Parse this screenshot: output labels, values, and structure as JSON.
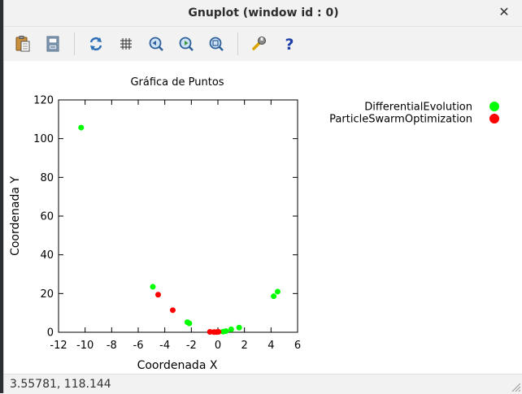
{
  "window": {
    "title": "Gnuplot (window id : 0)",
    "close_glyph": "✕"
  },
  "toolbar": {
    "items": [
      {
        "name": "copy-clipboard-icon"
      },
      {
        "name": "print-icon"
      },
      {
        "name": "replot-icon"
      },
      {
        "name": "grid-icon"
      },
      {
        "name": "zoom-previous-icon"
      },
      {
        "name": "zoom-next-icon"
      },
      {
        "name": "autoscale-icon"
      },
      {
        "name": "config-wrench-icon"
      },
      {
        "name": "help-icon"
      }
    ]
  },
  "status": {
    "coords": "3.55781,  118.144"
  },
  "chart_data": {
    "type": "scatter",
    "title": "Gráfica de Puntos",
    "xlabel": "Coordenada X",
    "ylabel": "Coordenada Y",
    "xlim": [
      -12,
      6
    ],
    "ylim": [
      0,
      120
    ],
    "xticks": [
      -12,
      -10,
      -8,
      -6,
      -4,
      -2,
      0,
      2,
      4,
      6
    ],
    "yticks": [
      0,
      20,
      40,
      60,
      80,
      100,
      120
    ],
    "grid": false,
    "legend": "top-right, outside plot",
    "series": [
      {
        "name": "DifferentialEvolution",
        "color": "#00ff00",
        "points": [
          {
            "x": -10.3,
            "y": 105.7
          },
          {
            "x": -4.9,
            "y": 23.5
          },
          {
            "x": -2.3,
            "y": 5.2
          },
          {
            "x": -2.15,
            "y": 4.6
          },
          {
            "x": 0.4,
            "y": 0.3
          },
          {
            "x": 0.6,
            "y": 0.6
          },
          {
            "x": 1.0,
            "y": 1.5
          },
          {
            "x": 1.6,
            "y": 2.4
          },
          {
            "x": 4.2,
            "y": 18.6
          },
          {
            "x": 4.5,
            "y": 21.0
          }
        ]
      },
      {
        "name": "ParticleSwarmOptimization",
        "color": "#ff0000",
        "points": [
          {
            "x": -4.5,
            "y": 19.4
          },
          {
            "x": -3.4,
            "y": 11.4
          },
          {
            "x": -0.6,
            "y": 0.2
          },
          {
            "x": -0.3,
            "y": 0.1
          },
          {
            "x": -0.1,
            "y": 0.1
          },
          {
            "x": 0.05,
            "y": 0.2
          }
        ]
      }
    ]
  }
}
